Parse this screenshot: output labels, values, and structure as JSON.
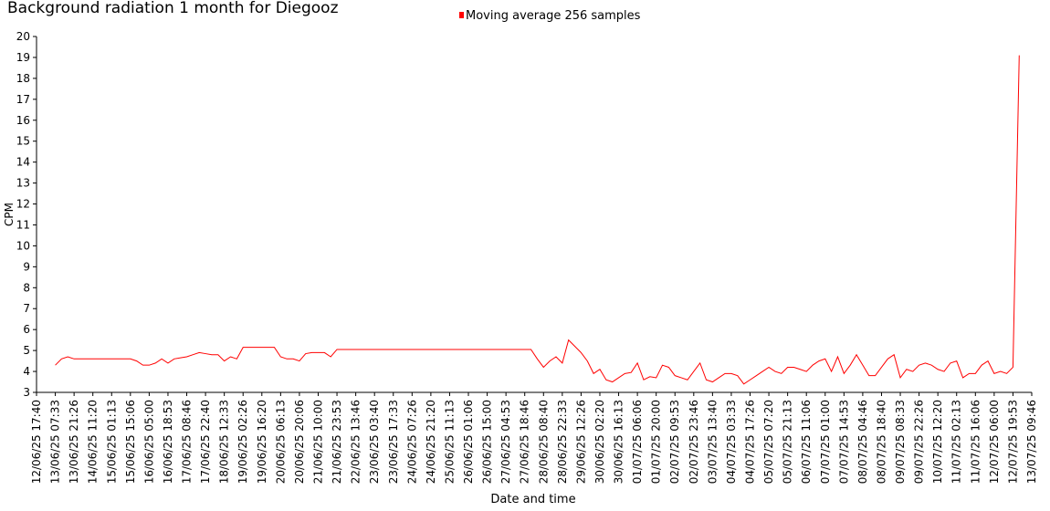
{
  "chart_data": {
    "type": "line",
    "title": "Background radiation 1 month for Diegooz",
    "xlabel": "Date and time",
    "ylabel": "CPM",
    "legend_position": "top",
    "categories": [
      "12/06/25 17:40",
      null,
      null,
      "13/06/25 07:33",
      null,
      null,
      "13/06/25 21:26",
      null,
      null,
      "14/06/25 11:20",
      null,
      null,
      "15/06/25 01:13",
      null,
      null,
      "15/06/25 15:06",
      null,
      null,
      "16/06/25 05:00",
      null,
      null,
      "16/06/25 18:53",
      null,
      null,
      "17/06/25 08:46",
      null,
      null,
      "17/06/25 22:40",
      null,
      null,
      "18/06/25 12:33",
      null,
      null,
      "19/06/25 02:26",
      null,
      null,
      "19/06/25 16:20",
      null,
      null,
      "20/06/25 06:13",
      null,
      null,
      "20/06/25 20:06",
      null,
      null,
      "21/06/25 10:00",
      null,
      null,
      "21/06/25 23:53",
      null,
      null,
      "22/06/25 13:46",
      null,
      null,
      "23/06/25 03:40",
      null,
      null,
      "23/06/25 17:33",
      null,
      null,
      "24/06/25 07:26",
      null,
      null,
      "24/06/25 21:20",
      null,
      null,
      "25/06/25 11:13",
      null,
      null,
      "26/06/25 01:06",
      null,
      null,
      "26/06/25 15:00",
      null,
      null,
      "27/06/25 04:53",
      null,
      null,
      "27/06/25 18:46",
      null,
      null,
      "28/06/25 08:40",
      null,
      null,
      "28/06/25 22:33",
      null,
      null,
      "29/06/25 12:26",
      null,
      null,
      "30/06/25 02:20",
      null,
      null,
      "30/06/25 16:13",
      null,
      null,
      "01/07/25 06:06",
      null,
      null,
      "01/07/25 20:00",
      null,
      null,
      "02/07/25 09:53",
      null,
      null,
      "02/07/25 23:46",
      null,
      null,
      "03/07/25 13:40",
      null,
      null,
      "04/07/25 03:33",
      null,
      null,
      "04/07/25 17:26",
      null,
      null,
      "05/07/25 07:20",
      null,
      null,
      "05/07/25 21:13",
      null,
      null,
      "06/07/25 11:06",
      null,
      null,
      "07/07/25 01:00",
      null,
      null,
      "07/07/25 14:53",
      null,
      null,
      "08/07/25 04:46",
      null,
      null,
      "08/07/25 18:40",
      null,
      null,
      "09/07/25 08:33",
      null,
      null,
      "09/07/25 22:26",
      null,
      null,
      "10/07/25 12:20",
      null,
      null,
      "11/07/25 02:13",
      null,
      null,
      "11/07/25 16:06",
      null,
      null,
      "12/07/25 06:00",
      null,
      null,
      "12/07/25 19:53",
      null,
      null,
      "13/07/25 09:46"
    ],
    "series": [
      {
        "name": "Moving average 256 samples",
        "color": "#ff0000",
        "values": [
          null,
          null,
          null,
          4.3,
          4.6,
          4.7,
          4.6,
          4.6,
          4.6,
          4.6,
          4.6,
          4.6,
          4.6,
          4.6,
          4.6,
          4.6,
          4.5,
          4.3,
          4.3,
          4.4,
          4.6,
          4.4,
          4.6,
          4.65,
          4.7,
          4.8,
          4.9,
          4.85,
          4.8,
          4.8,
          4.5,
          4.7,
          4.6,
          5.15,
          5.15,
          5.15,
          5.15,
          5.15,
          5.15,
          4.7,
          4.6,
          4.6,
          4.5,
          4.85,
          4.9,
          4.9,
          4.9,
          4.7,
          5.05,
          5.05,
          5.05,
          5.05,
          5.05,
          5.05,
          5.05,
          5.05,
          5.05,
          5.05,
          5.05,
          5.05,
          5.05,
          5.05,
          5.05,
          5.05,
          5.05,
          5.05,
          5.05,
          5.05,
          5.05,
          5.05,
          5.05,
          5.05,
          5.05,
          5.05,
          5.05,
          5.05,
          5.05,
          5.05,
          5.05,
          5.05,
          4.6,
          4.2,
          4.5,
          4.7,
          4.4,
          5.5,
          5.2,
          4.9,
          4.5,
          3.9,
          4.1,
          3.6,
          3.5,
          3.7,
          3.9,
          3.95,
          4.4,
          3.6,
          3.75,
          3.7,
          4.3,
          4.2,
          3.8,
          3.7,
          3.6,
          4.0,
          4.4,
          3.6,
          3.5,
          3.7,
          3.9,
          3.9,
          3.8,
          3.4,
          3.6,
          3.8,
          4.0,
          4.2,
          4.0,
          3.9,
          4.2,
          4.2,
          4.1,
          4.0,
          4.3,
          4.5,
          4.6,
          4.0,
          4.7,
          3.9,
          4.3,
          4.8,
          4.3,
          3.8,
          3.8,
          4.2,
          4.6,
          4.8,
          3.7,
          4.1,
          4.0,
          4.3,
          4.4,
          4.3,
          4.1,
          4.0,
          4.4,
          4.5,
          3.7,
          3.9,
          3.9,
          4.3,
          4.5,
          3.9,
          4.0,
          3.9,
          4.2,
          19.1,
          null,
          null
        ]
      }
    ],
    "ylim": [
      3,
      20
    ],
    "yticks": [
      3,
      4,
      5,
      6,
      7,
      8,
      9,
      10,
      11,
      12,
      13,
      14,
      15,
      16,
      17,
      18,
      19,
      20
    ],
    "grid": false
  }
}
